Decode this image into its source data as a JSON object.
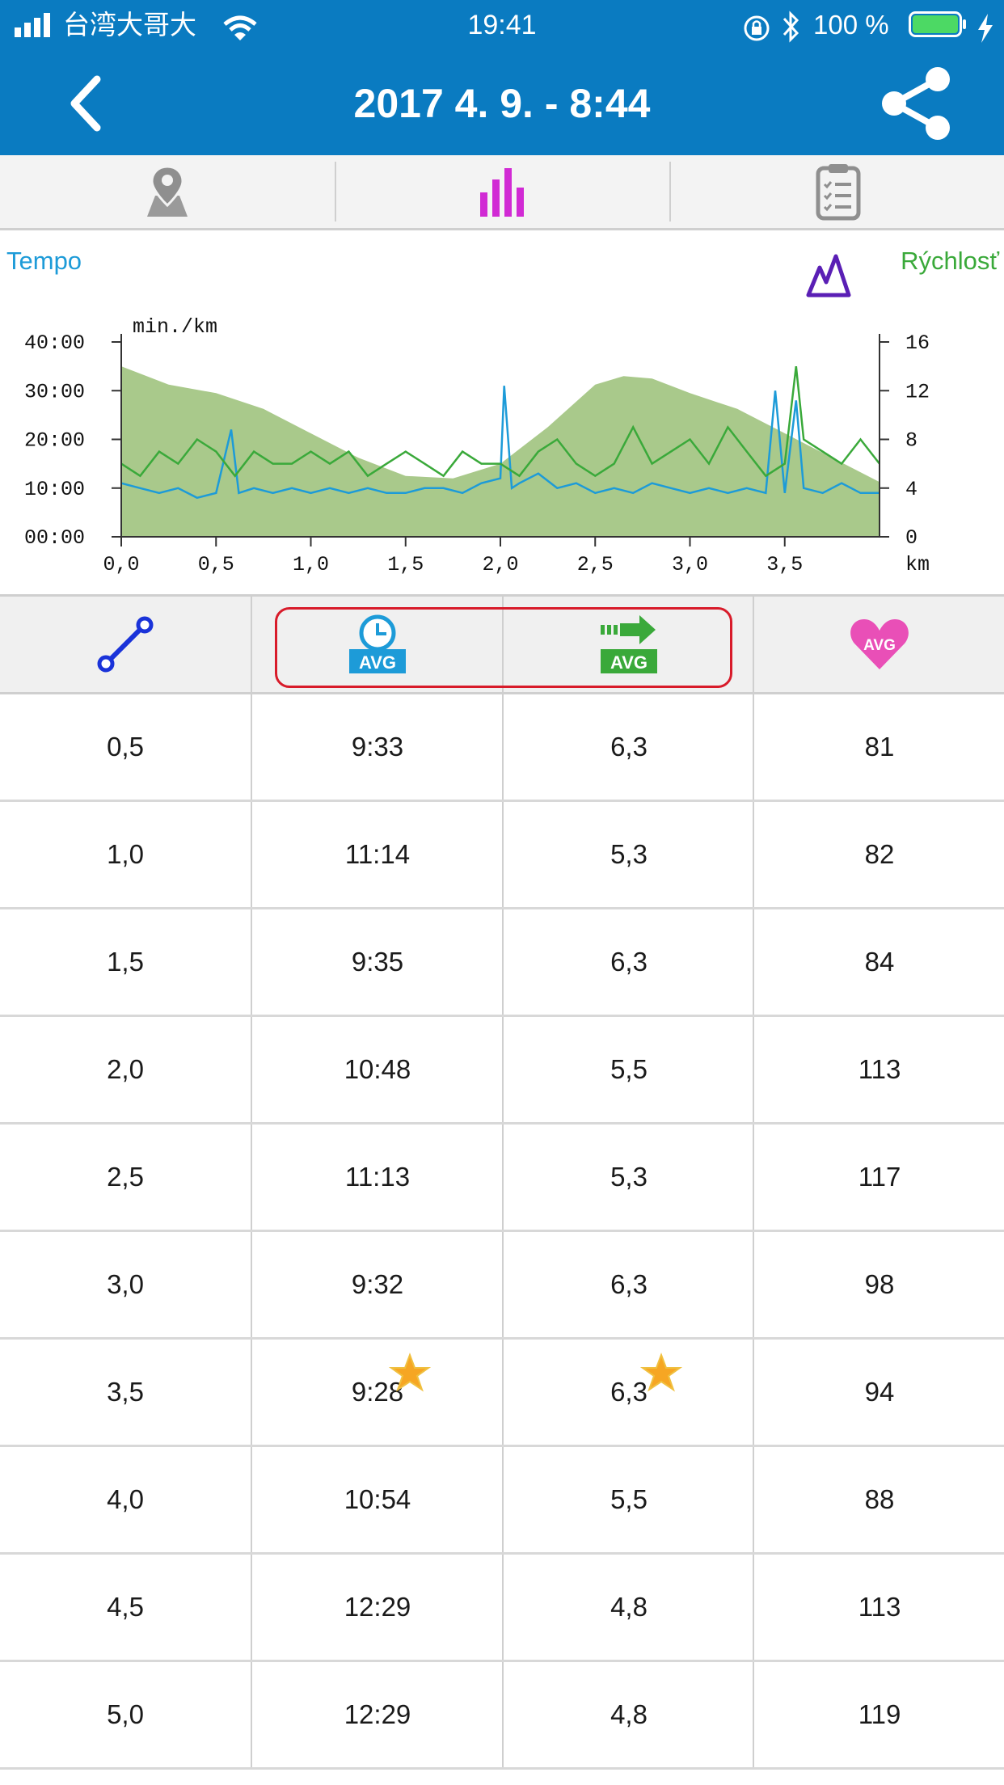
{
  "status_bar": {
    "carrier": "台湾大哥大",
    "time": "19:41",
    "battery_percent": "100 %"
  },
  "nav": {
    "title": "2017 4. 9. - 8:44"
  },
  "tabs": [
    {
      "icon": "map-pin-icon",
      "selected": false
    },
    {
      "icon": "bar-chart-icon",
      "selected": true
    },
    {
      "icon": "clipboard-icon",
      "selected": false
    }
  ],
  "chart": {
    "legend_left": "Tempo",
    "legend_right": "Rýchlosť",
    "left_axis_label": "min./km",
    "x_unit_label": "km",
    "colors": {
      "pace": "#1d9bd8",
      "speed": "#3aa93a",
      "elevation": "#a9c98b"
    }
  },
  "chart_data": {
    "type": "line",
    "x_ticks": [
      "0,0",
      "0,5",
      "1,0",
      "1,5",
      "2,0",
      "2,5",
      "3,0",
      "3,5"
    ],
    "y_left_ticks": [
      "00:00",
      "10:00",
      "20:00",
      "30:00",
      "40:00"
    ],
    "y_right_ticks": [
      "0",
      "4",
      "8",
      "12",
      "16"
    ],
    "xlim": [
      0,
      4.0
    ],
    "ylim_left_min": [
      0,
      40
    ],
    "ylim_right_kmh": [
      0,
      16
    ],
    "xlabel": "km",
    "ylabel": "min./km",
    "series": [
      {
        "name": "Tempo",
        "axis": "left",
        "x": [
          0,
          0.1,
          0.2,
          0.3,
          0.4,
          0.5,
          0.58,
          0.62,
          0.7,
          0.8,
          0.9,
          1.0,
          1.1,
          1.2,
          1.3,
          1.4,
          1.5,
          1.6,
          1.7,
          1.8,
          1.9,
          2.0,
          2.02,
          2.06,
          2.1,
          2.2,
          2.3,
          2.4,
          2.5,
          2.6,
          2.7,
          2.8,
          2.9,
          3.0,
          3.1,
          3.2,
          3.3,
          3.4,
          3.45,
          3.5,
          3.56,
          3.6,
          3.7,
          3.8,
          3.9,
          4.0
        ],
        "values": [
          11,
          10,
          9,
          10,
          8,
          9,
          22,
          9,
          10,
          9,
          10,
          9,
          10,
          9,
          10,
          9,
          9,
          10,
          10,
          9,
          11,
          12,
          31,
          10,
          11,
          13,
          10,
          11,
          9,
          10,
          9,
          11,
          10,
          9,
          10,
          9,
          10,
          9,
          30,
          9,
          28,
          10,
          9,
          11,
          9,
          9
        ]
      },
      {
        "name": "Rýchlosť",
        "axis": "right",
        "x": [
          0,
          0.1,
          0.2,
          0.3,
          0.4,
          0.5,
          0.6,
          0.7,
          0.8,
          0.9,
          1.0,
          1.1,
          1.2,
          1.3,
          1.4,
          1.5,
          1.6,
          1.7,
          1.8,
          1.9,
          2.0,
          2.1,
          2.2,
          2.3,
          2.4,
          2.5,
          2.6,
          2.7,
          2.8,
          2.9,
          3.0,
          3.1,
          3.2,
          3.3,
          3.4,
          3.5,
          3.56,
          3.6,
          3.7,
          3.8,
          3.9,
          4.0
        ],
        "values": [
          6,
          5,
          7,
          6,
          8,
          7,
          5,
          7,
          6,
          6,
          7,
          6,
          7,
          5,
          6,
          7,
          6,
          5,
          7,
          6,
          6,
          5,
          7,
          8,
          6,
          5,
          6,
          9,
          6,
          7,
          8,
          6,
          9,
          7,
          5,
          6,
          14,
          8,
          7,
          6,
          8,
          6
        ]
      },
      {
        "name": "",
        "axis": "right",
        "fill": true,
        "x": [
          0,
          0.25,
          0.5,
          0.75,
          1.0,
          1.25,
          1.5,
          1.75,
          2.0,
          2.25,
          2.5,
          2.65,
          2.8,
          3.0,
          3.25,
          3.5,
          3.75,
          4.0
        ],
        "values": [
          14,
          12.5,
          11.8,
          10.5,
          8.5,
          6.5,
          5.0,
          4.8,
          6.0,
          9.0,
          12.5,
          13.2,
          13.0,
          11.8,
          10.5,
          8.5,
          6.5,
          4.5
        ]
      }
    ]
  },
  "table": {
    "header_icons": [
      "distance-icon",
      "avg-pace-icon",
      "avg-speed-icon",
      "avg-heart-rate-icon"
    ],
    "header_badge": "AVG",
    "rows": [
      {
        "km": "0,5",
        "pace": "9:33",
        "speed": "6,3",
        "hr": "81",
        "best": false
      },
      {
        "km": "1,0",
        "pace": "11:14",
        "speed": "5,3",
        "hr": "82",
        "best": false
      },
      {
        "km": "1,5",
        "pace": "9:35",
        "speed": "6,3",
        "hr": "84",
        "best": false
      },
      {
        "km": "2,0",
        "pace": "10:48",
        "speed": "5,5",
        "hr": "113",
        "best": false
      },
      {
        "km": "2,5",
        "pace": "11:13",
        "speed": "5,3",
        "hr": "117",
        "best": false
      },
      {
        "km": "3,0",
        "pace": "9:32",
        "speed": "6,3",
        "hr": "98",
        "best": false
      },
      {
        "km": "3,5",
        "pace": "9:28",
        "speed": "6,3",
        "hr": "94",
        "best": true
      },
      {
        "km": "4,0",
        "pace": "10:54",
        "speed": "5,5",
        "hr": "88",
        "best": false
      },
      {
        "km": "4,5",
        "pace": "12:29",
        "speed": "4,8",
        "hr": "113",
        "best": false
      },
      {
        "km": "5,0",
        "pace": "12:29",
        "speed": "4,8",
        "hr": "119",
        "best": false
      }
    ]
  }
}
